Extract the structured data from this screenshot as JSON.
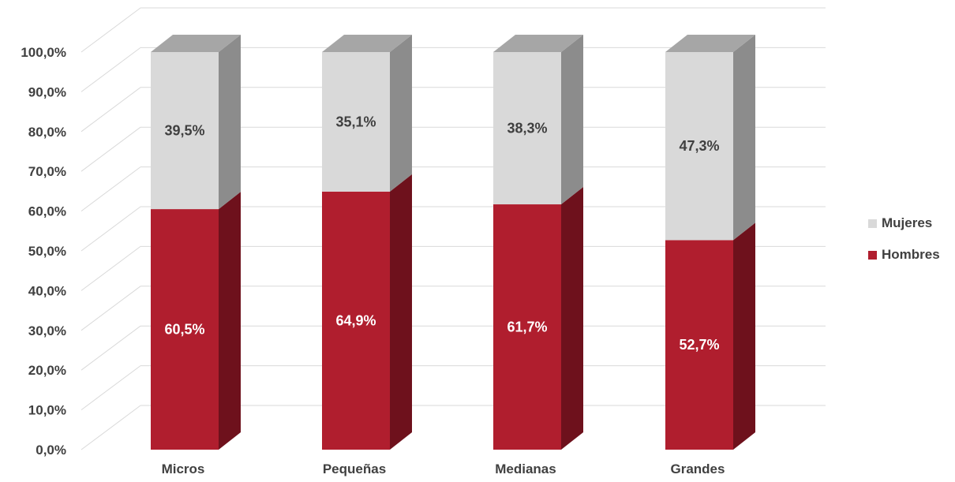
{
  "chart_data": {
    "type": "bar",
    "stacked": true,
    "style": "3d-column",
    "categories": [
      "Micros",
      "Pequeñas",
      "Medianas",
      "Grandes"
    ],
    "series": [
      {
        "name": "Hombres",
        "values": [
          60.5,
          64.9,
          61.7,
          52.7
        ],
        "labels": [
          "60,5%",
          "64,9%",
          "61,7%",
          "52,7%"
        ]
      },
      {
        "name": "Mujeres",
        "values": [
          39.5,
          35.1,
          38.3,
          47.3
        ],
        "labels": [
          "39,5%",
          "35,1%",
          "38,3%",
          "47,3%"
        ]
      }
    ],
    "y_ticks": [
      "0,0%",
      "10,0%",
      "20,0%",
      "30,0%",
      "40,0%",
      "50,0%",
      "60,0%",
      "70,0%",
      "80,0%",
      "90,0%",
      "100,0%"
    ],
    "ylim": [
      0,
      100
    ],
    "grid": true,
    "legend_position": "right",
    "colors": {
      "hombres_front": "#b01e2e",
      "hombres_side": "#6e111c",
      "mujeres_front": "#d9d9d9",
      "mujeres_side": "#8c8c8c",
      "top": "#a6a6a6",
      "label_dark": "#404040",
      "label_light": "#ffffff",
      "grid": "#d9d9d9"
    }
  },
  "legend": {
    "items": [
      {
        "label": "Mujeres",
        "color": "#d9d9d9"
      },
      {
        "label": "Hombres",
        "color": "#b01e2e"
      }
    ]
  }
}
